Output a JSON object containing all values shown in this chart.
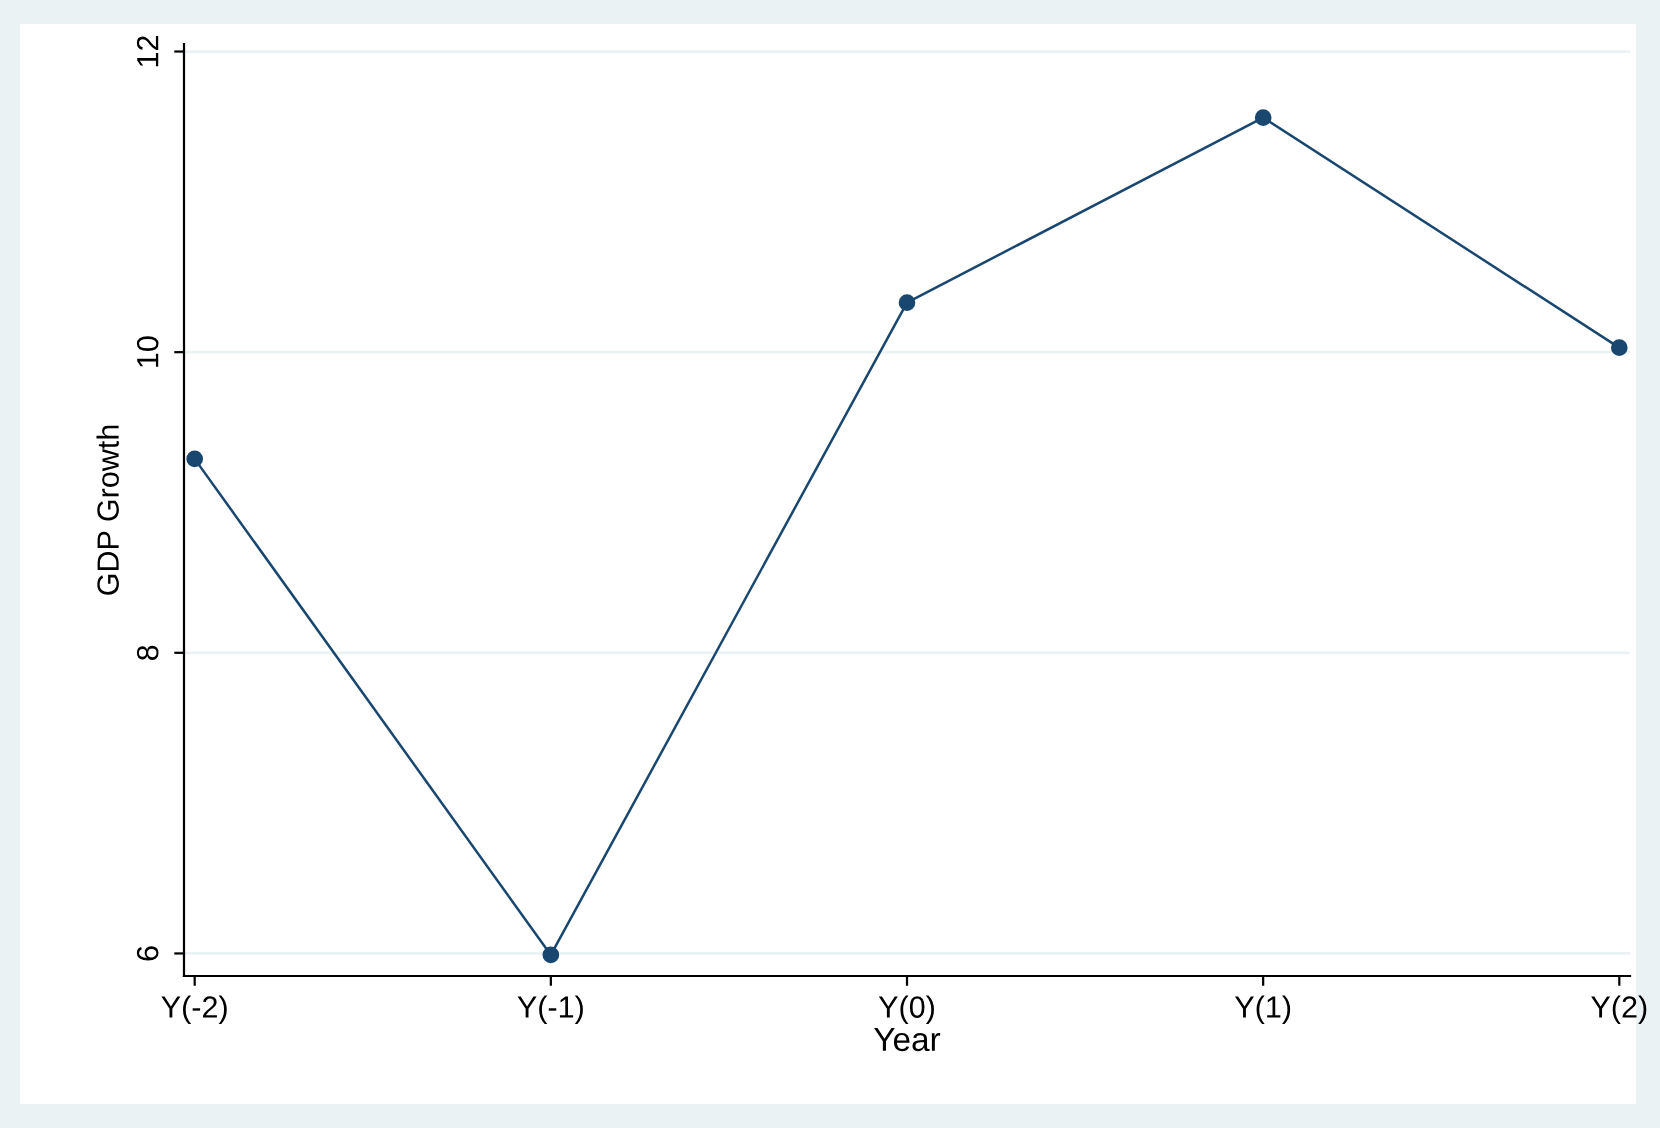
{
  "chart_data": {
    "type": "line",
    "xlabel": "Year",
    "ylabel": "GDP Growth",
    "categories": [
      "Y(-2)",
      "Y(-1)",
      "Y(0)",
      "Y(1)",
      "Y(2)"
    ],
    "series": [
      {
        "color": "#1a476f",
        "values": [
          9.29,
          5.99,
          10.33,
          11.56,
          10.03
        ]
      }
    ],
    "ylim": [
      5.85,
      12.05
    ],
    "yticks": [
      6,
      8,
      10,
      12
    ],
    "grid": "y",
    "marker": "circle",
    "line_style": "solid"
  }
}
